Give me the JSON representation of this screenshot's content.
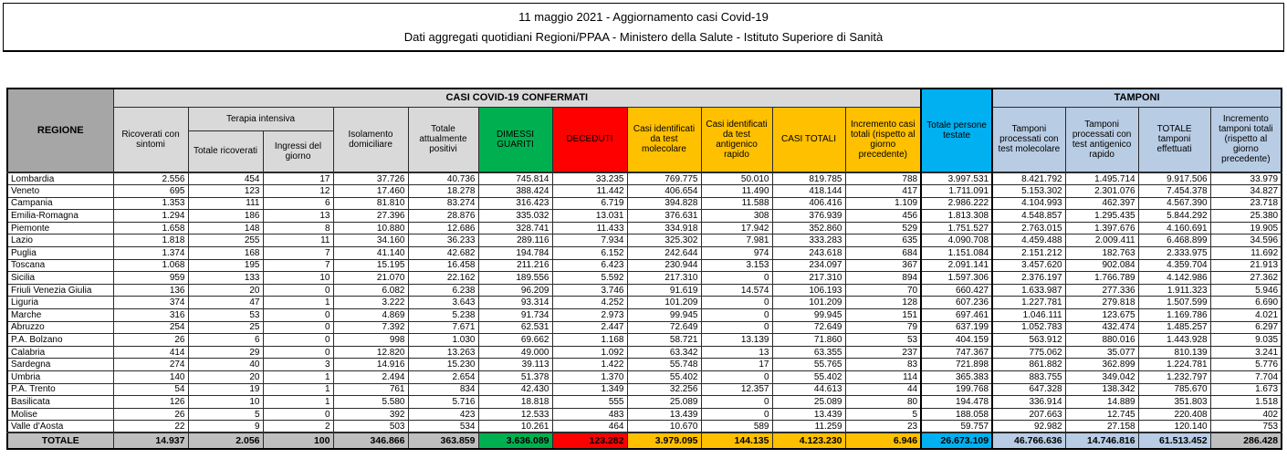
{
  "title": {
    "line1": "11 maggio 2021 - Aggiornamento casi Covid-19",
    "line2": "Dati aggregati quotidiani Regioni/PPAA - Ministero della Salute - Istituto Superiore di Sanità"
  },
  "table": {
    "header": {
      "regione": "REGIONE",
      "casi_confermati": "CASI COVID-19 CONFERMATI",
      "tamponi": "TAMPONI",
      "ricoverati": "Ricoverati con sintomi",
      "terapia_intensiva": "Terapia intensiva",
      "ti_totale": "Totale ricoverati",
      "ti_ingressi": "Ingressi del giorno",
      "isolamento": "Isolamento domiciliare",
      "attualmente_positivi": "Totale attualmente positivi",
      "dimessi": "DIMESSI GUARITI",
      "deceduti": "DECEDUTI",
      "casi_molecolare": "Casi identificati da test molecolare",
      "casi_antigenico": "Casi identificati da test antigenico rapido",
      "casi_totali": "CASI TOTALI",
      "incremento_casi": "Incremento casi totali (rispetto al giorno precedente)",
      "persone_testate": "Totale persone testate",
      "tamponi_molecolare": "Tamponi processati con test molecolare",
      "tamponi_antigenico": "Tamponi processati con test antigenico rapido",
      "tamponi_totale": "TOTALE tamponi effettuati",
      "incremento_tamponi": "Incremento tamponi totali (rispetto al giorno precedente)"
    },
    "rows": [
      {
        "region": "Lombardia",
        "values": [
          "2.556",
          "454",
          "17",
          "37.726",
          "40.736",
          "745.814",
          "33.235",
          "769.775",
          "50.010",
          "819.785",
          "788",
          "3.997.531",
          "8.421.792",
          "1.495.714",
          "9.917.506",
          "33.979"
        ]
      },
      {
        "region": "Veneto",
        "values": [
          "695",
          "123",
          "12",
          "17.460",
          "18.278",
          "388.424",
          "11.442",
          "406.654",
          "11.490",
          "418.144",
          "417",
          "1.711.091",
          "5.153.302",
          "2.301.076",
          "7.454.378",
          "34.827"
        ]
      },
      {
        "region": "Campania",
        "values": [
          "1.353",
          "111",
          "6",
          "81.810",
          "83.274",
          "316.423",
          "6.719",
          "394.828",
          "11.588",
          "406.416",
          "1.109",
          "2.986.222",
          "4.104.993",
          "462.397",
          "4.567.390",
          "23.718"
        ]
      },
      {
        "region": "Emilia-Romagna",
        "values": [
          "1.294",
          "186",
          "13",
          "27.396",
          "28.876",
          "335.032",
          "13.031",
          "376.631",
          "308",
          "376.939",
          "456",
          "1.813.308",
          "4.548.857",
          "1.295.435",
          "5.844.292",
          "25.380"
        ]
      },
      {
        "region": "Piemonte",
        "values": [
          "1.658",
          "148",
          "8",
          "10.880",
          "12.686",
          "328.741",
          "11.433",
          "334.918",
          "17.942",
          "352.860",
          "529",
          "1.751.527",
          "2.763.015",
          "1.397.676",
          "4.160.691",
          "19.905"
        ]
      },
      {
        "region": "Lazio",
        "values": [
          "1.818",
          "255",
          "11",
          "34.160",
          "36.233",
          "289.116",
          "7.934",
          "325.302",
          "7.981",
          "333.283",
          "635",
          "4.090.708",
          "4.459.488",
          "2.009.411",
          "6.468.899",
          "34.596"
        ]
      },
      {
        "region": "Puglia",
        "values": [
          "1.374",
          "168",
          "7",
          "41.140",
          "42.682",
          "194.784",
          "6.152",
          "242.644",
          "974",
          "243.618",
          "684",
          "1.151.084",
          "2.151.212",
          "182.763",
          "2.333.975",
          "11.692"
        ]
      },
      {
        "region": "Toscana",
        "values": [
          "1.068",
          "195",
          "7",
          "15.195",
          "16.458",
          "211.216",
          "6.423",
          "230.944",
          "3.153",
          "234.097",
          "367",
          "2.091.141",
          "3.457.620",
          "902.084",
          "4.359.704",
          "21.913"
        ]
      },
      {
        "region": "Sicilia",
        "values": [
          "959",
          "133",
          "10",
          "21.070",
          "22.162",
          "189.556",
          "5.592",
          "217.310",
          "0",
          "217.310",
          "894",
          "1.597.306",
          "2.376.197",
          "1.766.789",
          "4.142.986",
          "27.362"
        ]
      },
      {
        "region": "Friuli Venezia Giulia",
        "values": [
          "136",
          "20",
          "0",
          "6.082",
          "6.238",
          "96.209",
          "3.746",
          "91.619",
          "14.574",
          "106.193",
          "70",
          "660.427",
          "1.633.987",
          "277.336",
          "1.911.323",
          "5.946"
        ]
      },
      {
        "region": "Liguria",
        "values": [
          "374",
          "47",
          "1",
          "3.222",
          "3.643",
          "93.314",
          "4.252",
          "101.209",
          "0",
          "101.209",
          "128",
          "607.236",
          "1.227.781",
          "279.818",
          "1.507.599",
          "6.690"
        ]
      },
      {
        "region": "Marche",
        "values": [
          "316",
          "53",
          "0",
          "4.869",
          "5.238",
          "91.734",
          "2.973",
          "99.945",
          "0",
          "99.945",
          "151",
          "697.461",
          "1.046.111",
          "123.675",
          "1.169.786",
          "4.021"
        ]
      },
      {
        "region": "Abruzzo",
        "values": [
          "254",
          "25",
          "0",
          "7.392",
          "7.671",
          "62.531",
          "2.447",
          "72.649",
          "0",
          "72.649",
          "79",
          "637.199",
          "1.052.783",
          "432.474",
          "1.485.257",
          "6.297"
        ]
      },
      {
        "region": "P.A. Bolzano",
        "values": [
          "26",
          "6",
          "0",
          "998",
          "1.030",
          "69.662",
          "1.168",
          "58.721",
          "13.139",
          "71.860",
          "53",
          "404.159",
          "563.912",
          "880.016",
          "1.443.928",
          "9.035"
        ]
      },
      {
        "region": "Calabria",
        "values": [
          "414",
          "29",
          "0",
          "12.820",
          "13.263",
          "49.000",
          "1.092",
          "63.342",
          "13",
          "63.355",
          "237",
          "747.367",
          "775.062",
          "35.077",
          "810.139",
          "3.241"
        ]
      },
      {
        "region": "Sardegna",
        "values": [
          "274",
          "40",
          "3",
          "14.916",
          "15.230",
          "39.113",
          "1.422",
          "55.748",
          "17",
          "55.765",
          "83",
          "721.898",
          "861.882",
          "362.899",
          "1.224.781",
          "5.776"
        ]
      },
      {
        "region": "Umbria",
        "values": [
          "140",
          "20",
          "1",
          "2.494",
          "2.654",
          "51.378",
          "1.370",
          "55.402",
          "0",
          "55.402",
          "114",
          "365.383",
          "883.755",
          "349.042",
          "1.232.797",
          "7.704"
        ]
      },
      {
        "region": "P.A. Trento",
        "values": [
          "54",
          "19",
          "1",
          "761",
          "834",
          "42.430",
          "1.349",
          "32.256",
          "12.357",
          "44.613",
          "44",
          "199.768",
          "647.328",
          "138.342",
          "785.670",
          "1.673"
        ]
      },
      {
        "region": "Basilicata",
        "values": [
          "126",
          "10",
          "1",
          "5.580",
          "5.716",
          "18.818",
          "555",
          "25.089",
          "0",
          "25.089",
          "80",
          "194.478",
          "336.914",
          "14.889",
          "351.803",
          "1.518"
        ]
      },
      {
        "region": "Molise",
        "values": [
          "26",
          "5",
          "0",
          "392",
          "423",
          "12.533",
          "483",
          "13.439",
          "0",
          "13.439",
          "5",
          "188.058",
          "207.663",
          "12.745",
          "220.408",
          "402"
        ]
      },
      {
        "region": "Valle d'Aosta",
        "values": [
          "22",
          "9",
          "2",
          "503",
          "534",
          "10.261",
          "464",
          "10.670",
          "589",
          "11.259",
          "23",
          "59.757",
          "92.982",
          "27.158",
          "120.140",
          "753"
        ]
      }
    ],
    "total": {
      "region": "TOTALE",
      "values": [
        "14.937",
        "2.056",
        "100",
        "346.866",
        "363.859",
        "3.636.089",
        "123.282",
        "3.979.095",
        "144.135",
        "4.123.230",
        "6.946",
        "26.673.109",
        "46.766.636",
        "14.746.816",
        "61.513.452",
        "286.428"
      ]
    }
  },
  "colors": {
    "green_dimessi": "#00B050",
    "red_deceduti": "#FF0000",
    "yellow_casi": "#FFC000",
    "cyan_testate": "#00B0F0",
    "lavender_tamponi": "#B8CCE4",
    "gray_regione_header": "#A6A6A6",
    "gray_subheader": "#D9D9D9",
    "gray_total_row": "#BFBFBF"
  }
}
